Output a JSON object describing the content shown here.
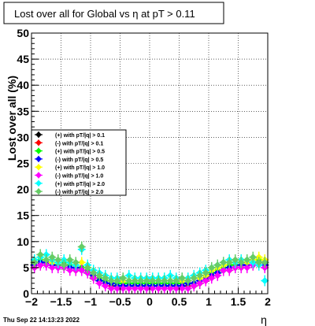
{
  "chart_data": {
    "type": "scatter",
    "title": "Lost over all for Global vs    η at pT > 0.11",
    "xlabel": "η",
    "ylabel": "Lost over all (%)",
    "xlim": [
      -2,
      2
    ],
    "ylim": [
      0,
      50
    ],
    "x_ticks": [
      -2,
      -1.5,
      -1,
      -0.5,
      0,
      0.5,
      1,
      1.5,
      2
    ],
    "x_tick_labels": [
      "−2",
      "−1.5",
      "−1",
      "−0.5",
      "0",
      "0.5",
      "1",
      "1.5",
      "2"
    ],
    "y_ticks": [
      0,
      5,
      10,
      15,
      20,
      25,
      30,
      35,
      40,
      45,
      50
    ],
    "y_tick_labels": [
      "0",
      "5",
      "10",
      "15",
      "20",
      "25",
      "30",
      "35",
      "40",
      "45",
      "50"
    ],
    "grid": true,
    "legend_position": "middle-left",
    "timestamp": "Thu Sep 22 14:13:23 2022",
    "x": [
      -1.95,
      -1.85,
      -1.75,
      -1.65,
      -1.55,
      -1.45,
      -1.35,
      -1.25,
      -1.15,
      -1.05,
      -0.95,
      -0.85,
      -0.75,
      -0.65,
      -0.55,
      -0.45,
      -0.35,
      -0.25,
      -0.15,
      -0.05,
      0.05,
      0.15,
      0.25,
      0.35,
      0.45,
      0.55,
      0.65,
      0.75,
      0.85,
      0.95,
      1.05,
      1.15,
      1.25,
      1.35,
      1.45,
      1.55,
      1.65,
      1.75,
      1.85,
      1.95
    ],
    "series": [
      {
        "name": "(+) with pT/|q| > 0.1",
        "color": "#000000",
        "values": [
          5.5,
          6.0,
          6.0,
          5.5,
          5.0,
          5.5,
          5.0,
          4.5,
          5.0,
          4.0,
          3.0,
          2.5,
          2.0,
          1.5,
          1.5,
          1.5,
          1.5,
          1.5,
          1.5,
          1.5,
          1.5,
          1.5,
          1.5,
          1.5,
          1.5,
          1.5,
          1.5,
          1.5,
          2.0,
          2.5,
          3.5,
          4.0,
          4.5,
          5.0,
          5.0,
          5.5,
          5.5,
          6.0,
          6.5,
          6.0
        ]
      },
      {
        "name": "(-) with pT/|q| > 0.1",
        "color": "#ff0000",
        "values": [
          5.0,
          5.5,
          6.0,
          5.5,
          5.0,
          5.0,
          5.0,
          4.5,
          4.5,
          4.0,
          3.0,
          2.5,
          2.0,
          1.5,
          1.5,
          1.5,
          1.5,
          1.5,
          1.5,
          1.5,
          1.5,
          1.5,
          1.5,
          1.5,
          1.5,
          1.5,
          1.5,
          1.5,
          2.0,
          2.5,
          3.5,
          4.0,
          4.5,
          4.5,
          5.0,
          5.0,
          5.5,
          5.5,
          6.0,
          5.5
        ]
      },
      {
        "name": "(+) with pT/|q| > 0.5",
        "color": "#00ff00",
        "values": [
          6.0,
          6.5,
          6.5,
          6.0,
          5.5,
          6.0,
          5.5,
          5.0,
          5.0,
          4.5,
          3.5,
          3.0,
          2.5,
          2.0,
          2.0,
          2.0,
          2.0,
          2.0,
          2.0,
          2.0,
          2.0,
          2.0,
          2.0,
          2.0,
          2.0,
          2.0,
          2.0,
          2.0,
          2.5,
          3.0,
          4.0,
          4.5,
          5.0,
          5.5,
          5.5,
          6.0,
          6.0,
          6.5,
          6.5,
          6.0
        ]
      },
      {
        "name": "(-) with pT/|q| > 0.5",
        "color": "#0000ff",
        "values": [
          5.5,
          6.0,
          6.0,
          5.5,
          5.0,
          5.5,
          5.0,
          5.0,
          4.5,
          4.0,
          3.5,
          2.5,
          2.0,
          2.0,
          1.5,
          1.5,
          1.5,
          1.5,
          1.5,
          1.5,
          1.5,
          1.5,
          1.5,
          1.5,
          1.5,
          1.5,
          2.0,
          2.0,
          2.5,
          3.0,
          3.5,
          4.0,
          4.5,
          5.0,
          5.0,
          5.5,
          5.5,
          6.0,
          6.0,
          5.5
        ]
      },
      {
        "name": "(+) with pT/|q| > 1.0",
        "color": "#ffff00",
        "values": [
          6.0,
          7.0,
          6.5,
          6.0,
          6.0,
          6.5,
          6.0,
          5.5,
          6.0,
          5.0,
          4.0,
          3.5,
          3.0,
          2.5,
          2.5,
          2.5,
          2.5,
          3.0,
          2.5,
          2.5,
          2.5,
          2.5,
          3.0,
          2.5,
          2.5,
          2.5,
          2.5,
          3.0,
          3.0,
          3.5,
          4.5,
          5.0,
          5.5,
          6.0,
          6.0,
          6.5,
          6.0,
          6.5,
          7.0,
          6.5
        ]
      },
      {
        "name": "(-) with pT/|q| > 1.0",
        "color": "#ff00ff",
        "values": [
          5.0,
          5.5,
          5.5,
          5.0,
          5.0,
          5.0,
          4.5,
          4.5,
          4.5,
          4.0,
          3.0,
          2.0,
          1.5,
          1.0,
          1.0,
          1.0,
          1.0,
          1.0,
          1.0,
          1.0,
          1.0,
          1.0,
          1.0,
          1.0,
          1.0,
          1.0,
          1.0,
          1.5,
          2.0,
          2.5,
          3.0,
          3.5,
          4.5,
          4.5,
          5.0,
          5.0,
          5.0,
          5.5,
          5.5,
          5.0
        ]
      },
      {
        "name": "(+) with pT/|q| > 2.0",
        "color": "#00ffff",
        "values": [
          6.5,
          7.0,
          7.5,
          6.5,
          6.0,
          6.5,
          6.0,
          5.5,
          8.5,
          5.5,
          4.5,
          4.0,
          3.5,
          3.0,
          3.0,
          3.0,
          3.5,
          3.0,
          3.0,
          3.0,
          3.0,
          3.0,
          3.0,
          3.5,
          3.0,
          3.0,
          3.0,
          3.5,
          4.0,
          4.5,
          5.0,
          5.5,
          6.0,
          6.5,
          6.0,
          6.5,
          6.5,
          6.0,
          5.5,
          2.5
        ]
      },
      {
        "name": "(-) with pT/|q| > 2.0",
        "color": "#66cc66",
        "values": [
          6.0,
          7.5,
          6.5,
          7.0,
          6.5,
          5.5,
          6.5,
          6.0,
          9.0,
          5.0,
          4.0,
          3.5,
          3.0,
          2.5,
          2.5,
          3.0,
          2.5,
          2.5,
          2.5,
          2.5,
          2.5,
          2.5,
          2.5,
          2.5,
          2.5,
          3.0,
          2.5,
          3.0,
          3.5,
          4.0,
          5.0,
          5.5,
          6.0,
          6.0,
          6.5,
          6.0,
          6.5,
          7.0,
          6.0,
          6.0
        ]
      }
    ]
  }
}
